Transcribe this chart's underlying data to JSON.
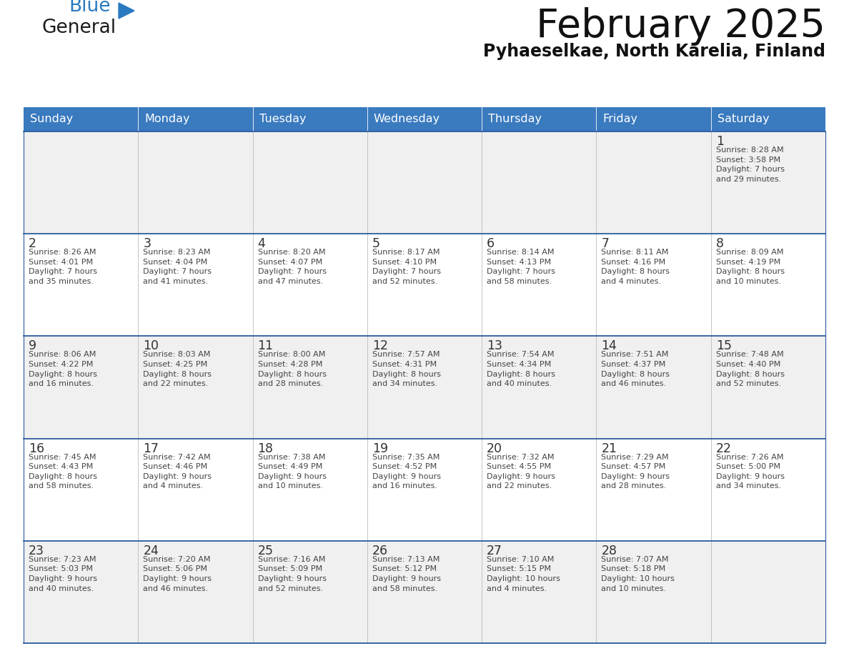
{
  "title": "February 2025",
  "subtitle": "Pyhaeselkae, North Karelia, Finland",
  "header_color": "#3a7abf",
  "header_text_color": "#ffffff",
  "day_names": [
    "Sunday",
    "Monday",
    "Tuesday",
    "Wednesday",
    "Thursday",
    "Friday",
    "Saturday"
  ],
  "divider_color": "#2b5c9e",
  "day_number_color": "#333333",
  "info_text_color": "#444444",
  "row_bg_odd": "#f0f0f0",
  "row_bg_even": "#ffffff",
  "weeks": [
    [
      {
        "day": null,
        "info": null
      },
      {
        "day": null,
        "info": null
      },
      {
        "day": null,
        "info": null
      },
      {
        "day": null,
        "info": null
      },
      {
        "day": null,
        "info": null
      },
      {
        "day": null,
        "info": null
      },
      {
        "day": 1,
        "info": "Sunrise: 8:28 AM\nSunset: 3:58 PM\nDaylight: 7 hours\nand 29 minutes."
      }
    ],
    [
      {
        "day": 2,
        "info": "Sunrise: 8:26 AM\nSunset: 4:01 PM\nDaylight: 7 hours\nand 35 minutes."
      },
      {
        "day": 3,
        "info": "Sunrise: 8:23 AM\nSunset: 4:04 PM\nDaylight: 7 hours\nand 41 minutes."
      },
      {
        "day": 4,
        "info": "Sunrise: 8:20 AM\nSunset: 4:07 PM\nDaylight: 7 hours\nand 47 minutes."
      },
      {
        "day": 5,
        "info": "Sunrise: 8:17 AM\nSunset: 4:10 PM\nDaylight: 7 hours\nand 52 minutes."
      },
      {
        "day": 6,
        "info": "Sunrise: 8:14 AM\nSunset: 4:13 PM\nDaylight: 7 hours\nand 58 minutes."
      },
      {
        "day": 7,
        "info": "Sunrise: 8:11 AM\nSunset: 4:16 PM\nDaylight: 8 hours\nand 4 minutes."
      },
      {
        "day": 8,
        "info": "Sunrise: 8:09 AM\nSunset: 4:19 PM\nDaylight: 8 hours\nand 10 minutes."
      }
    ],
    [
      {
        "day": 9,
        "info": "Sunrise: 8:06 AM\nSunset: 4:22 PM\nDaylight: 8 hours\nand 16 minutes."
      },
      {
        "day": 10,
        "info": "Sunrise: 8:03 AM\nSunset: 4:25 PM\nDaylight: 8 hours\nand 22 minutes."
      },
      {
        "day": 11,
        "info": "Sunrise: 8:00 AM\nSunset: 4:28 PM\nDaylight: 8 hours\nand 28 minutes."
      },
      {
        "day": 12,
        "info": "Sunrise: 7:57 AM\nSunset: 4:31 PM\nDaylight: 8 hours\nand 34 minutes."
      },
      {
        "day": 13,
        "info": "Sunrise: 7:54 AM\nSunset: 4:34 PM\nDaylight: 8 hours\nand 40 minutes."
      },
      {
        "day": 14,
        "info": "Sunrise: 7:51 AM\nSunset: 4:37 PM\nDaylight: 8 hours\nand 46 minutes."
      },
      {
        "day": 15,
        "info": "Sunrise: 7:48 AM\nSunset: 4:40 PM\nDaylight: 8 hours\nand 52 minutes."
      }
    ],
    [
      {
        "day": 16,
        "info": "Sunrise: 7:45 AM\nSunset: 4:43 PM\nDaylight: 8 hours\nand 58 minutes."
      },
      {
        "day": 17,
        "info": "Sunrise: 7:42 AM\nSunset: 4:46 PM\nDaylight: 9 hours\nand 4 minutes."
      },
      {
        "day": 18,
        "info": "Sunrise: 7:38 AM\nSunset: 4:49 PM\nDaylight: 9 hours\nand 10 minutes."
      },
      {
        "day": 19,
        "info": "Sunrise: 7:35 AM\nSunset: 4:52 PM\nDaylight: 9 hours\nand 16 minutes."
      },
      {
        "day": 20,
        "info": "Sunrise: 7:32 AM\nSunset: 4:55 PM\nDaylight: 9 hours\nand 22 minutes."
      },
      {
        "day": 21,
        "info": "Sunrise: 7:29 AM\nSunset: 4:57 PM\nDaylight: 9 hours\nand 28 minutes."
      },
      {
        "day": 22,
        "info": "Sunrise: 7:26 AM\nSunset: 5:00 PM\nDaylight: 9 hours\nand 34 minutes."
      }
    ],
    [
      {
        "day": 23,
        "info": "Sunrise: 7:23 AM\nSunset: 5:03 PM\nDaylight: 9 hours\nand 40 minutes."
      },
      {
        "day": 24,
        "info": "Sunrise: 7:20 AM\nSunset: 5:06 PM\nDaylight: 9 hours\nand 46 minutes."
      },
      {
        "day": 25,
        "info": "Sunrise: 7:16 AM\nSunset: 5:09 PM\nDaylight: 9 hours\nand 52 minutes."
      },
      {
        "day": 26,
        "info": "Sunrise: 7:13 AM\nSunset: 5:12 PM\nDaylight: 9 hours\nand 58 minutes."
      },
      {
        "day": 27,
        "info": "Sunrise: 7:10 AM\nSunset: 5:15 PM\nDaylight: 10 hours\nand 4 minutes."
      },
      {
        "day": 28,
        "info": "Sunrise: 7:07 AM\nSunset: 5:18 PM\nDaylight: 10 hours\nand 10 minutes."
      },
      {
        "day": null,
        "info": null
      }
    ]
  ]
}
